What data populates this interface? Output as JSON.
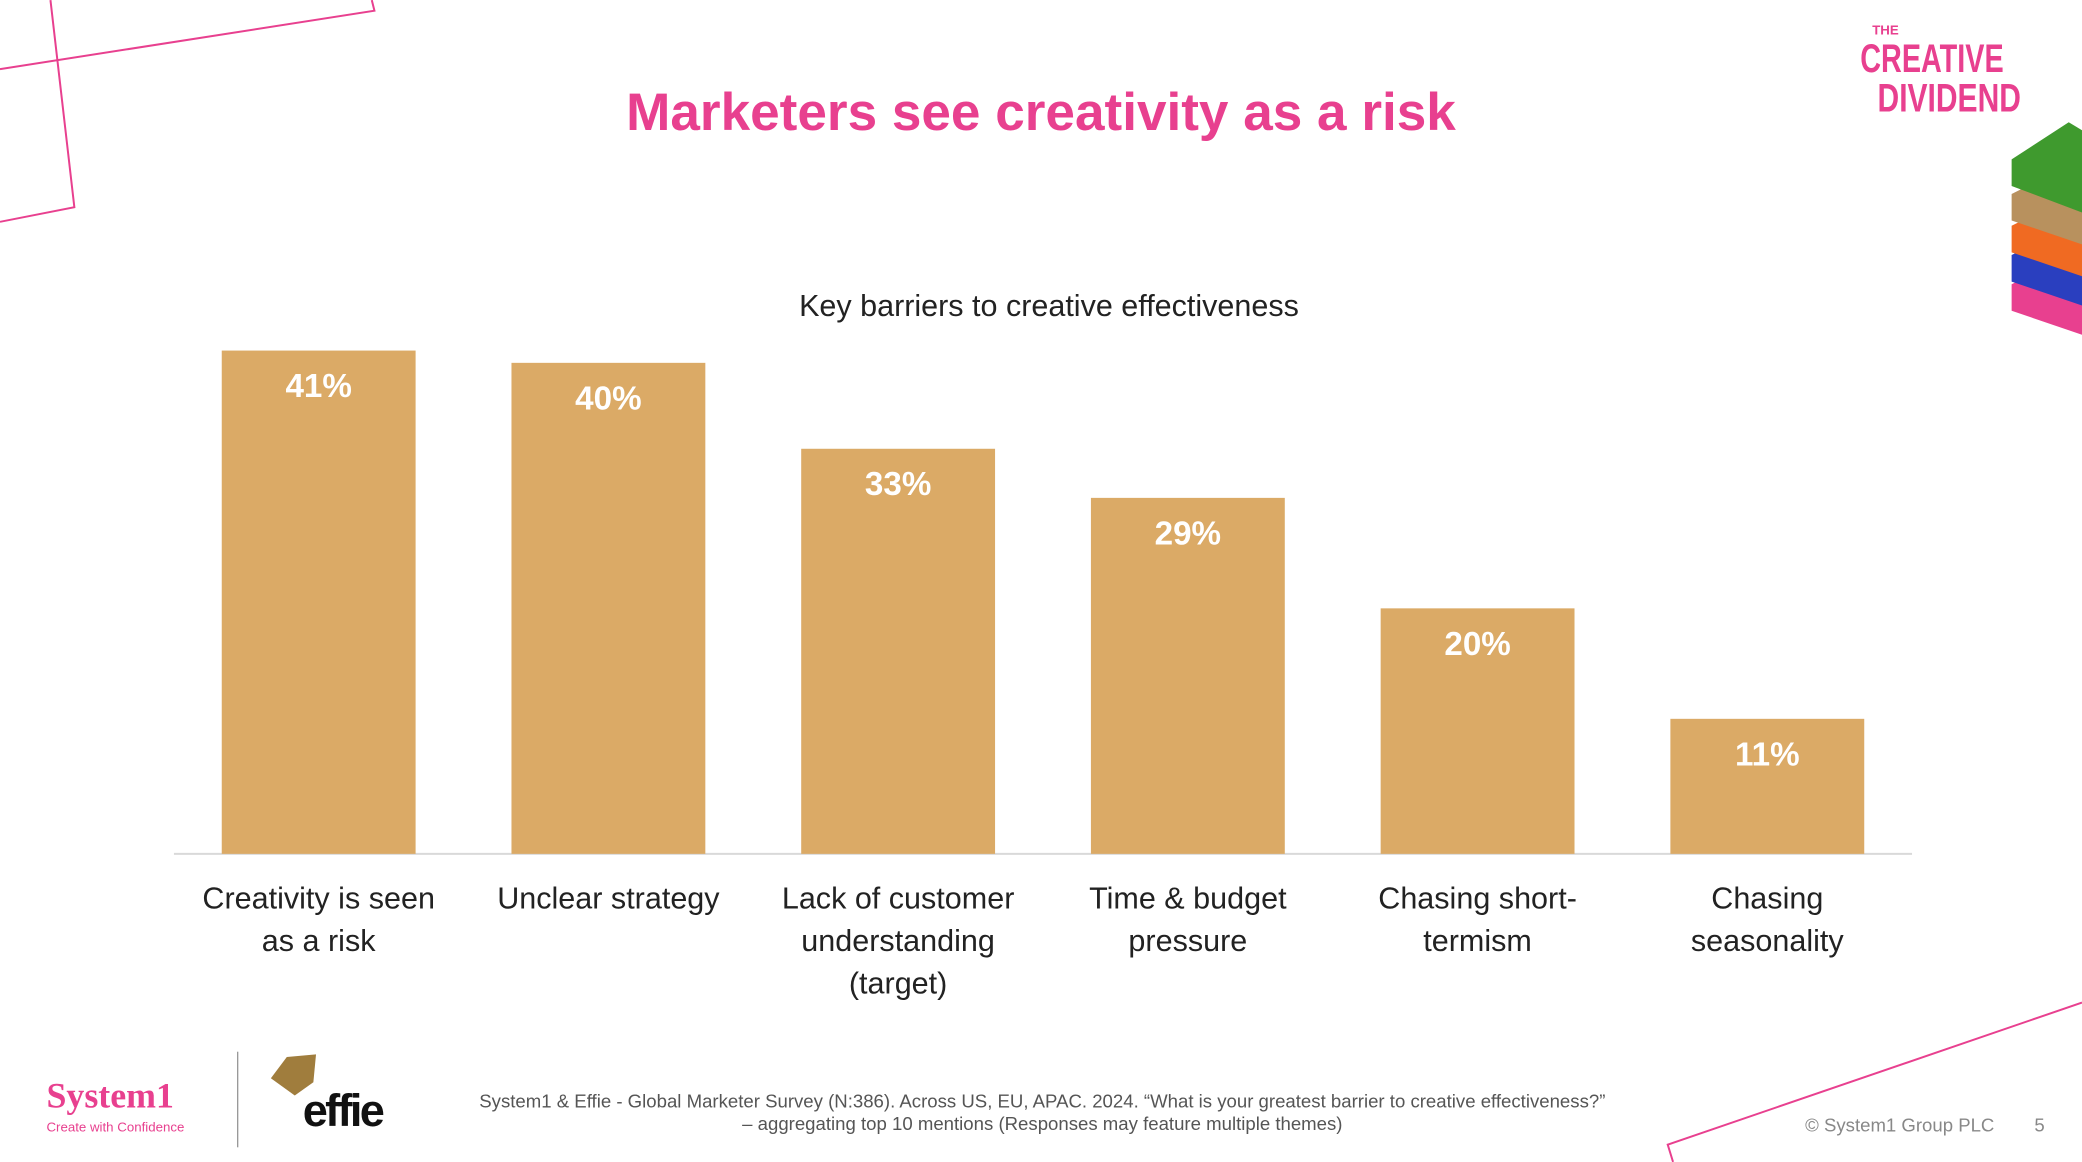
{
  "chart_data": {
    "type": "bar",
    "title": "Marketers see creativity as a risk",
    "subtitle": "Key barriers to creative effectiveness",
    "categories": [
      "Creativity is seen as a risk",
      "Unclear strategy",
      "Lack of customer understanding (target)",
      "Time & budget pressure",
      "Chasing short-termism",
      "Chasing seasonality"
    ],
    "values": [
      41,
      40,
      33,
      29,
      20,
      11
    ],
    "value_labels": [
      "41%",
      "40%",
      "33%",
      "29%",
      "20%",
      "11%"
    ],
    "color": "#dbaa66"
  },
  "branding": {
    "the": "THE",
    "creative": "CREATIVE",
    "dividend": "DIVIDEND",
    "system1": "System1",
    "tagline": "Create with Confidence",
    "effie": "effie"
  },
  "footer": {
    "source": "System1 & Effie - Global Marketer Survey (N:386). Across US, EU, APAC. 2024. “What is your greatest barrier to creative effectiveness?” – aggregating top 10 mentions (Responses may feature multiple themes)",
    "copyright": "© System1 Group PLC",
    "page": "5"
  }
}
